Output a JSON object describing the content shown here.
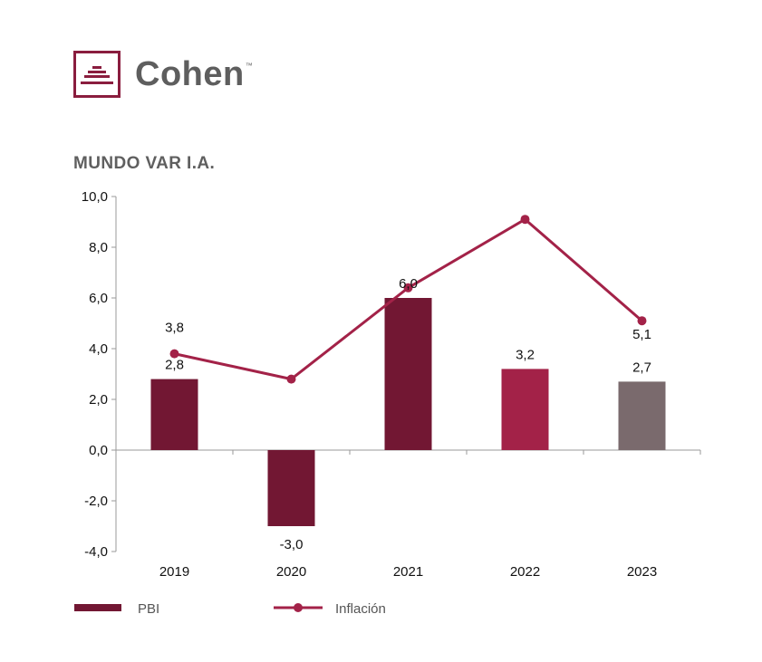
{
  "logo": {
    "brand": "Cohen",
    "tm": "™"
  },
  "chart_data": {
    "type": "bar",
    "title": "MUNDO VAR I.A.",
    "categories": [
      "2019",
      "2020",
      "2021",
      "2022",
      "2023"
    ],
    "series": [
      {
        "name": "PBI",
        "kind": "bar",
        "values": [
          2.8,
          -3.0,
          6.0,
          3.2,
          2.7
        ],
        "labels": [
          "2,8",
          "-3,0",
          "6,0",
          "3,2",
          "2,7"
        ],
        "colors": [
          "#721733",
          "#721733",
          "#721733",
          "#a32248",
          "#7a6a6d"
        ]
      },
      {
        "name": "Inflación",
        "kind": "line",
        "values": [
          3.8,
          2.8,
          6.4,
          9.1,
          5.1
        ],
        "labels": [
          "3,8",
          "",
          "",
          "",
          "5,1"
        ],
        "color": "#a32248"
      }
    ],
    "ylim": [
      -4,
      10
    ],
    "yticks": [
      -4,
      -2,
      0,
      2,
      4,
      6,
      8,
      10
    ],
    "ytick_labels": [
      "-4,0",
      "-2,0",
      "0,0",
      "2,0",
      "4,0",
      "6,0",
      "8,0",
      "10,0"
    ],
    "xlabel": "",
    "ylabel": "",
    "grid": false,
    "legend_position": "bottom"
  }
}
